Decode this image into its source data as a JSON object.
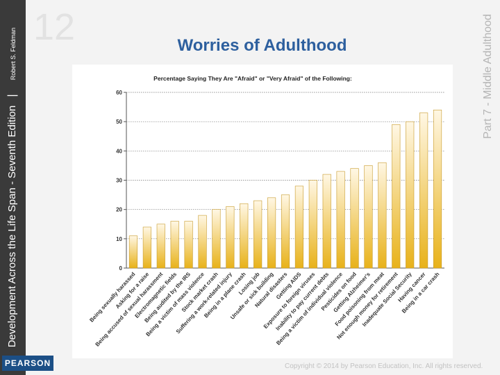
{
  "slide": {
    "title": "Worries of Adulthood",
    "sidebar_book": "Development Across the Life Span - Seventh Edition",
    "sidebar_author": "Robert S. Feldman",
    "publisher": "PEARSON",
    "part_label": "Part 7 - Middle Adulthood",
    "copyright": "Copyright © 2014 by Pearson Education, Inc. All rights reserved."
  },
  "colors": {
    "bar_top": "#fff7e4",
    "bar_bottom": "#e8b21a",
    "bar_stroke": "#c79a2a",
    "title": "#2d5f9e"
  },
  "chart_data": {
    "type": "bar",
    "title": "Percentage Saying They Are \"Afraid\" or \"Very Afraid\" of the Following:",
    "xlabel": "",
    "ylabel": "",
    "ylim": [
      0,
      60
    ],
    "yticks": [
      0,
      10,
      20,
      30,
      40,
      50,
      60
    ],
    "grid": true,
    "categories": [
      "Being sexually harassed",
      "Asking for a raise",
      "Being accused of sexual harassment",
      "Electromagnetic fields",
      "Being audited by the IRS",
      "Being a victim of mass violence",
      "Stock market crash",
      "Suffering a work-related injury",
      "Being in a plane crash",
      "Losing job",
      "Unsafe or sick building",
      "Natural disasters",
      "Getting AIDS",
      "Exposure to foreign viruses",
      "Inability to pay current debts",
      "Being a victim of individual violence",
      "Pesticides on food",
      "Getting Alzheimer's",
      "Food poisoning from meat",
      "Not enough money for retirement",
      "Inadequate Social Security",
      "Having cancer",
      "Being in a car crash"
    ],
    "values": [
      11,
      14,
      15,
      16,
      16,
      18,
      20,
      21,
      22,
      23,
      24,
      25,
      28,
      30,
      32,
      33,
      34,
      35,
      36,
      49,
      50,
      53,
      54
    ]
  }
}
